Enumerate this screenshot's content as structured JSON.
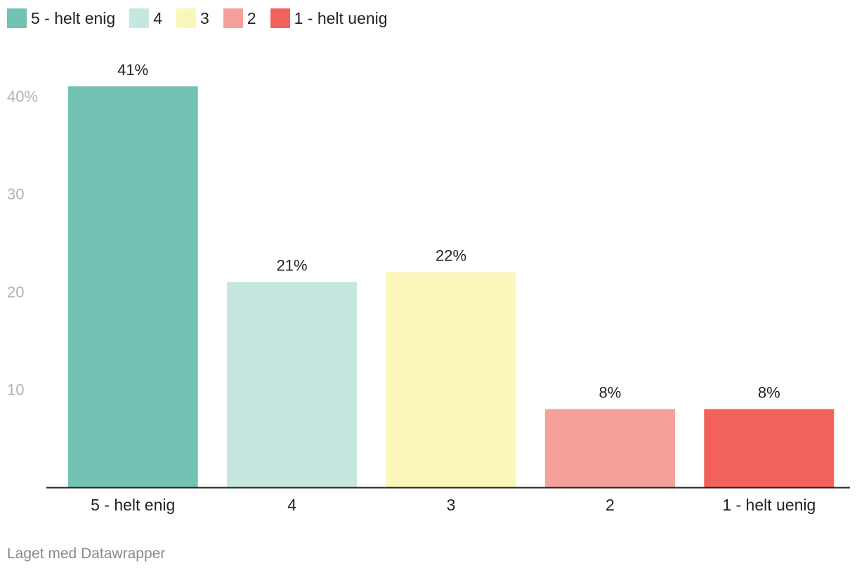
{
  "legend": [
    {
      "label": "5 - helt enig",
      "color": "#72c3b3"
    },
    {
      "label": "4",
      "color": "#c6e7df"
    },
    {
      "label": "3",
      "color": "#fbf7bb"
    },
    {
      "label": "2",
      "color": "#f6a09b"
    },
    {
      "label": "1 - helt uenig",
      "color": "#f0625b"
    }
  ],
  "chart_data": {
    "type": "bar",
    "categories": [
      "5 - helt enig",
      "4",
      "3",
      "2",
      "1 - helt uenig"
    ],
    "values": [
      41,
      21,
      22,
      8,
      8
    ],
    "value_labels": [
      "41%",
      "21%",
      "22%",
      "8%",
      "8%"
    ],
    "colors": [
      "#72c3b3",
      "#c6e7df",
      "#fbf7bb",
      "#f6a09b",
      "#f0625b"
    ],
    "yticks": [
      {
        "value": 10,
        "label": "10"
      },
      {
        "value": 20,
        "label": "20"
      },
      {
        "value": 30,
        "label": "30"
      },
      {
        "value": 40,
        "label": "40%"
      }
    ],
    "ylim": [
      0,
      41
    ],
    "grid": false,
    "legend_position": "top-left",
    "title": "",
    "xlabel": "",
    "ylabel": ""
  },
  "footer": {
    "credit": "Laget med Datawrapper"
  }
}
